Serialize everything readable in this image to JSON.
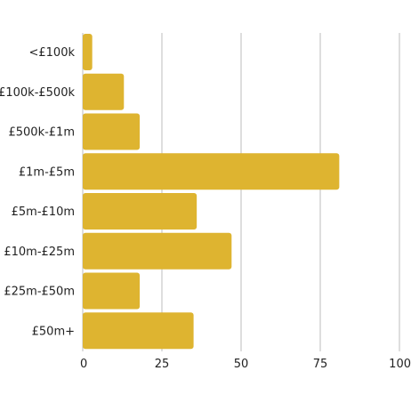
{
  "chart_data": {
    "type": "bar",
    "orientation": "horizontal",
    "title": "",
    "xlabel": "",
    "ylabel": "",
    "categories": [
      "<£100k",
      "£100k-£500k",
      "£500k-£1m",
      "£1m-£5m",
      "£5m-£10m",
      "£10m-£25m",
      "£25m-£50m",
      "£50m+"
    ],
    "values": [
      3,
      13,
      18,
      81,
      36,
      47,
      18,
      35
    ],
    "xlim": [
      0,
      100
    ],
    "xticks": [
      "0",
      "25",
      "50",
      "75",
      "100"
    ],
    "grid": true,
    "colors": {
      "bar": "#DEB430",
      "grid": "#BDBDBD",
      "text": "#222222"
    }
  }
}
